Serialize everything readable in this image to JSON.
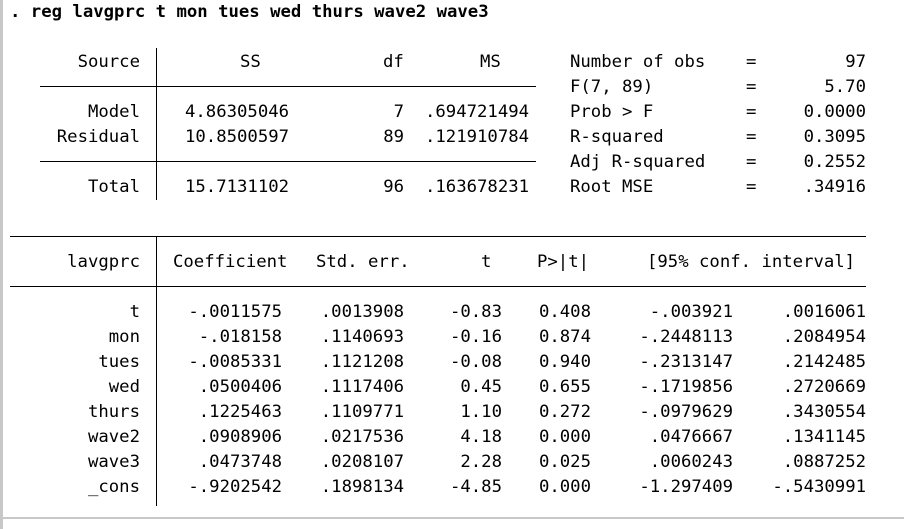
{
  "command": ". reg lavgprc t mon tues wed thurs wave2 wave3",
  "anova": {
    "headers": {
      "source": "Source",
      "ss": "SS",
      "df": "df",
      "ms": "MS"
    },
    "rows": [
      {
        "source": "Model",
        "ss": "4.86305046",
        "df": "7",
        "ms": ".694721494"
      },
      {
        "source": "Residual",
        "ss": "10.8500597",
        "df": "89",
        "ms": ".121910784"
      },
      {
        "source": "Total",
        "ss": "15.7131102",
        "df": "96",
        "ms": ".163678231"
      }
    ]
  },
  "stats": [
    {
      "label": "Number of obs",
      "eq": "=",
      "value": "97"
    },
    {
      "label": "F(7, 89)",
      "eq": "=",
      "value": "5.70"
    },
    {
      "label": "Prob > F",
      "eq": "=",
      "value": "0.0000"
    },
    {
      "label": "R-squared",
      "eq": "=",
      "value": "0.3095"
    },
    {
      "label": "Adj R-squared",
      "eq": "=",
      "value": "0.2552"
    },
    {
      "label": "Root MSE",
      "eq": "=",
      "value": ".34916"
    }
  ],
  "coef": {
    "headers": {
      "var": "lavgprc",
      "coef": "Coefficient",
      "se": "Std. err.",
      "t": "t",
      "p": "P>|t|",
      "ci": "[95% conf. interval]"
    },
    "rows": [
      {
        "var": "t",
        "coef": "-.0011575",
        "se": ".0013908",
        "t": "-0.83",
        "p": "0.408",
        "lo": "-.003921",
        "hi": ".0016061"
      },
      {
        "var": "mon",
        "coef": "-.018158",
        "se": ".1140693",
        "t": "-0.16",
        "p": "0.874",
        "lo": "-.2448113",
        "hi": ".2084954"
      },
      {
        "var": "tues",
        "coef": "-.0085331",
        "se": ".1121208",
        "t": "-0.08",
        "p": "0.940",
        "lo": "-.2313147",
        "hi": ".2142485"
      },
      {
        "var": "wed",
        "coef": ".0500406",
        "se": ".1117406",
        "t": "0.45",
        "p": "0.655",
        "lo": "-.1719856",
        "hi": ".2720669"
      },
      {
        "var": "thurs",
        "coef": ".1225463",
        "se": ".1109771",
        "t": "1.10",
        "p": "0.272",
        "lo": "-.0979629",
        "hi": ".3430554"
      },
      {
        "var": "wave2",
        "coef": ".0908906",
        "se": ".0217536",
        "t": "4.18",
        "p": "0.000",
        "lo": ".0476667",
        "hi": ".1341145"
      },
      {
        "var": "wave3",
        "coef": ".0473748",
        "se": ".0208107",
        "t": "2.28",
        "p": "0.025",
        "lo": ".0060243",
        "hi": ".0887252"
      },
      {
        "var": "_cons",
        "coef": "-.9202542",
        "se": ".1898134",
        "t": "-4.85",
        "p": "0.000",
        "lo": "-1.297409",
        "hi": "-.5430991"
      }
    ]
  }
}
